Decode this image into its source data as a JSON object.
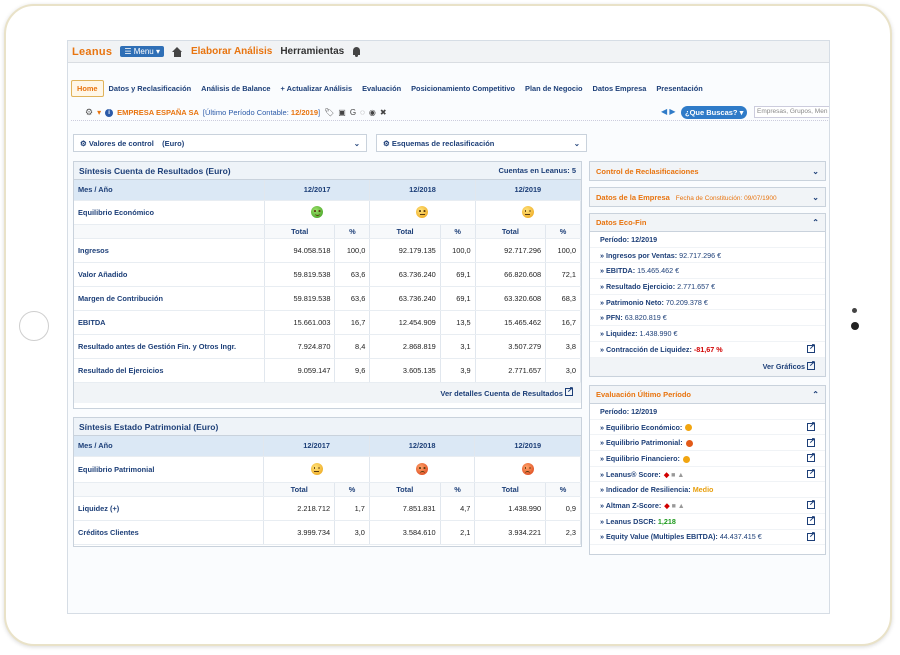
{
  "app": {
    "logo": "Leanus",
    "menu": "Menu",
    "top_links": [
      "Elaborar Análisis",
      "Herramientas"
    ]
  },
  "nav": [
    "Home",
    "Datos y Reclasificación",
    "Análisis de Balance",
    "+ Actualizar Análisis",
    "Evaluación",
    "Posicionamiento Competitivo",
    "Plan de Negocio",
    "Datos Empresa",
    "Presentación"
  ],
  "company": {
    "name": "EMPRESA ESPAÑA SA",
    "period_label": "[Último Período Contable:",
    "period_value": "12/2019",
    "period_close": "]"
  },
  "search": {
    "button": "¿Que Buscas?",
    "placeholder": "Empresas, Grupos, Men"
  },
  "dropdowns": {
    "valores": "Valores de control    (Euro)",
    "esquemas": "Esquemas de reclasificación"
  },
  "cuenta": {
    "title": "Síntesis Cuenta de Resultados (Euro)",
    "count": "Cuentas en Leanus: 5",
    "col_label": "Mes / Año",
    "periods": [
      "12/2017",
      "12/2018",
      "12/2019"
    ],
    "equilibrio_label": "Equilibrio Económico",
    "total": "Total",
    "pct": "%",
    "rows": [
      {
        "label": "Ingresos",
        "v": [
          "94.058.518",
          "100,0",
          "92.179.135",
          "100,0",
          "92.717.296",
          "100,0"
        ]
      },
      {
        "label": "Valor Añadido",
        "v": [
          "59.819.538",
          "63,6",
          "63.736.240",
          "69,1",
          "66.820.608",
          "72,1"
        ]
      },
      {
        "label": "Margen de Contribución",
        "v": [
          "59.819.538",
          "63,6",
          "63.736.240",
          "69,1",
          "63.320.608",
          "68,3"
        ]
      },
      {
        "label": "EBITDA",
        "v": [
          "15.661.003",
          "16,7",
          "12.454.909",
          "13,5",
          "15.465.462",
          "16,7"
        ]
      },
      {
        "label": "Resultado antes de Gestión Fin. y Otros Ingr.",
        "v": [
          "7.924.870",
          "8,4",
          "2.868.819",
          "3,1",
          "3.507.279",
          "3,8"
        ]
      },
      {
        "label": "Resultado del Ejercicios",
        "v": [
          "9.059.147",
          "9,6",
          "3.605.135",
          "3,9",
          "2.771.657",
          "3,0"
        ]
      }
    ],
    "footer": "Ver detalles Cuenta de Resultados"
  },
  "patrimonial": {
    "title": "Síntesis Estado Patrimonial (Euro)",
    "col_label": "Mes / Año",
    "periods": [
      "12/2017",
      "12/2018",
      "12/2019"
    ],
    "equilibrio_label": "Equilibrio Patrimonial",
    "total": "Total",
    "pct": "%",
    "rows": [
      {
        "label": "Liquidez (+)",
        "v": [
          "2.218.712",
          "1,7",
          "7.851.831",
          "4,7",
          "1.438.990",
          "0,9"
        ]
      },
      {
        "label": "Créditos Clientes",
        "v": [
          "3.999.734",
          "3,0",
          "3.584.610",
          "2,1",
          "3.934.221",
          "2,3"
        ]
      }
    ]
  },
  "right": {
    "control": "Control de Reclasificaciones",
    "datos": "Datos de la Empresa",
    "constitucion": "Fecha de Constitución: 09/07/1900",
    "ecofin": {
      "title": "Datos Eco-Fin",
      "periodo": "Período: 12/2019",
      "items": [
        {
          "k": "» Ingresos por Ventas:",
          "v": "92.717.296 €"
        },
        {
          "k": "» EBITDA:",
          "v": "15.465.462 €"
        },
        {
          "k": "» Resultado Ejercicio:",
          "v": "2.771.657 €"
        },
        {
          "k": "» Patrimonio Neto:",
          "v": "70.209.378 €"
        },
        {
          "k": "» PFN:",
          "v": "63.820.819 €"
        },
        {
          "k": "» Liquidez:",
          "v": "1.438.990 €"
        }
      ],
      "contraccion_k": "» Contracción de Liquidez:",
      "contraccion_v": "-81,67 %",
      "graficos": "Ver Gráficos"
    },
    "evaluacion": {
      "title": "Evaluación Último Período",
      "periodo": "Período: 12/2019",
      "e_econ": "» Equilibrio Económico:",
      "e_patr": "» Equilibrio Patrimonial:",
      "e_fin": "» Equilibrio Financiero:",
      "score": "» Leanus® Score:",
      "resil_k": "» Indicador de Resiliencia:",
      "resil_v": "Medio",
      "altman": "» Altman Z-Score:",
      "dscr_k": "» Leanus DSCR:",
      "dscr_v": "1,218",
      "equity_k": "» Equity Value (Multiples EBITDA):",
      "equity_v": "44.437.415 €"
    }
  }
}
